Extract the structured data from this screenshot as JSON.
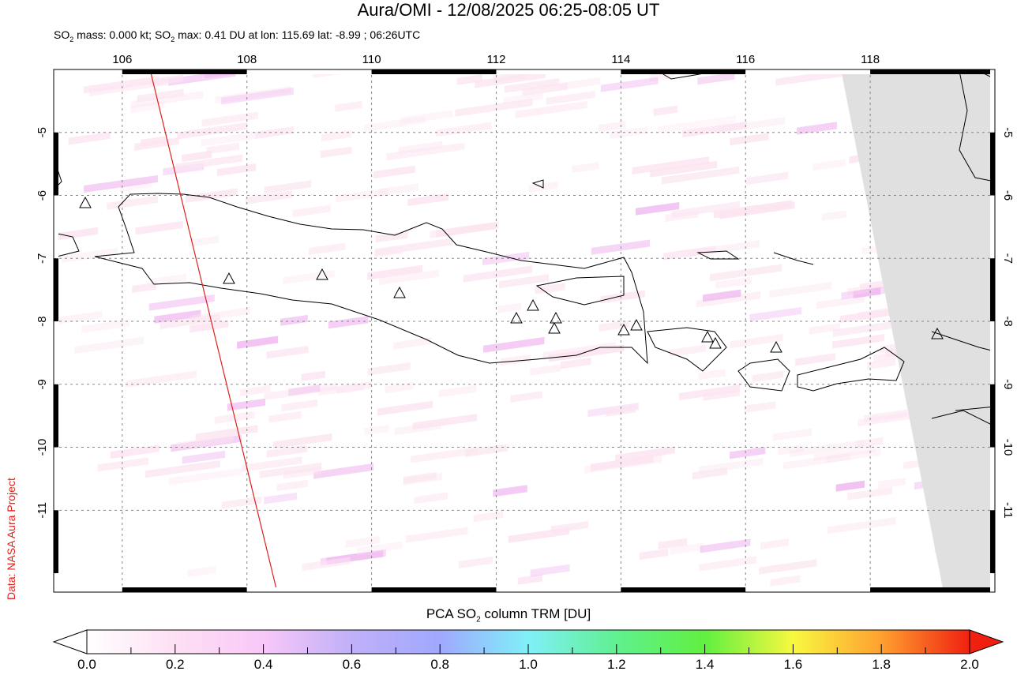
{
  "header": {
    "title": "Aura/OMI - 12/08/2025 06:25-08:05 UT",
    "subtitle_parts": [
      "SO",
      "2",
      " mass: 0.000 kt; SO",
      "2",
      " max: 0.41 DU at lon: 115.69 lat: -8.99 ; 06:26UTC"
    ]
  },
  "credit": "Data: NASA Aura Project",
  "map": {
    "lon_ticks": [
      "106",
      "108",
      "110",
      "112",
      "114",
      "116",
      "118"
    ],
    "lat_ticks": [
      "-5",
      "-6",
      "-7",
      "-8",
      "-9",
      "-10",
      "-11"
    ],
    "lon_range": [
      104.9,
      120.0
    ],
    "lat_range": [
      -4.0,
      -12.3
    ],
    "orbit_track_color": "#e0201a",
    "no_data_color": "#e0e0e0",
    "volcano_icon": "triangle-outline"
  },
  "colorbar": {
    "title_parts": [
      "PCA SO",
      "2",
      " column TRM [DU]"
    ],
    "labels": [
      "0.0",
      "0.2",
      "0.4",
      "0.6",
      "0.8",
      "1.0",
      "1.2",
      "1.4",
      "1.6",
      "1.8",
      "2.0"
    ],
    "range": [
      0.0,
      2.0
    ],
    "colors": [
      "#ffffff",
      "#fde0f4",
      "#f8c8f8",
      "#c0b0f8",
      "#a0a8ff",
      "#80f0f8",
      "#60f090",
      "#60f040",
      "#f8f840",
      "#ffa030",
      "#f02010"
    ]
  }
}
